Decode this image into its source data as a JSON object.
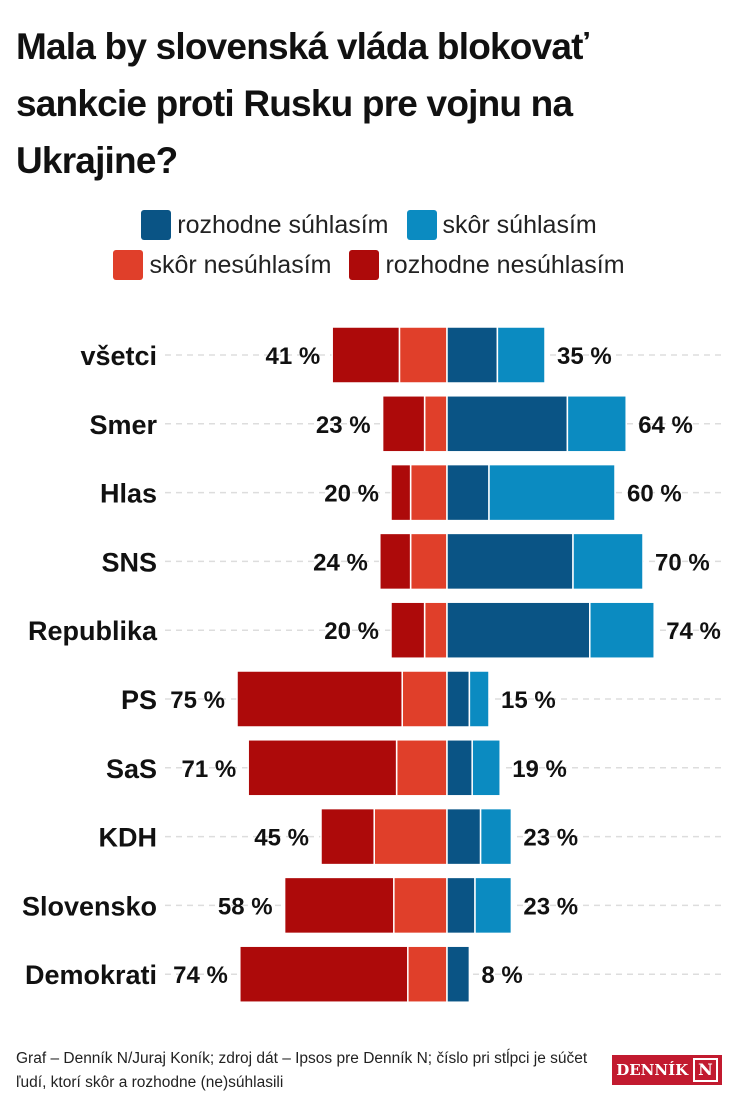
{
  "title": "Mala by slovenská vláda blokovať sankcie proti Rusku pre vojnu na Ukrajine?",
  "legend": [
    {
      "label": "rozhodne súhlasím",
      "color": "#0a5485"
    },
    {
      "label": "skôr súhlasím",
      "color": "#0b8bc1"
    },
    {
      "label": "skôr nesúhlasím",
      "color": "#e03f2a"
    },
    {
      "label": "rozhodne nesúhlasím",
      "color": "#ad0a0a"
    }
  ],
  "chart_data": {
    "type": "bar",
    "subtype": "diverging-stacked-horizontal",
    "title": "Mala by slovenská vláda blokovať sankcie proti Rusku pre vojnu na Ukrajine?",
    "categories": [
      "všetci",
      "Smer",
      "Hlas",
      "SNS",
      "Republika",
      "PS",
      "SaS",
      "KDH",
      "Slovensko",
      "Demokrati"
    ],
    "series": [
      {
        "name": "rozhodne nesúhlasím",
        "side": "left",
        "color": "#ad0a0a",
        "values": [
          24,
          15,
          7,
          11,
          12,
          59,
          53,
          19,
          39,
          60
        ]
      },
      {
        "name": "skôr nesúhlasím",
        "side": "left",
        "color": "#e03f2a",
        "values": [
          17,
          8,
          13,
          13,
          8,
          16,
          18,
          26,
          19,
          14
        ]
      },
      {
        "name": "rozhodne súhlasím",
        "side": "right",
        "color": "#0a5485",
        "values": [
          18,
          43,
          15,
          45,
          51,
          8,
          9,
          12,
          10,
          8
        ]
      },
      {
        "name": "skôr súhlasím",
        "side": "right",
        "color": "#0b8bc1",
        "values": [
          17,
          21,
          45,
          25,
          23,
          7,
          10,
          11,
          13,
          0
        ]
      }
    ],
    "left_totals": [
      "41 %",
      "23 %",
      "20 %",
      "24 %",
      "20 %",
      "75 %",
      "71 %",
      "45 %",
      "58 %",
      "74 %"
    ],
    "right_totals": [
      "35 %",
      "64 %",
      "60 %",
      "70 %",
      "74 %",
      "15 %",
      "19 %",
      "23 %",
      "23 %",
      "8 %"
    ],
    "xlim": [
      -80,
      100
    ],
    "grid": "dashed horizontal row guides",
    "legend_position": "top"
  },
  "footer": {
    "note": "Graf – Denník N/Juraj Koník; zdroj dát – Ipsos pre Denník N; číslo pri stĺpci je súčet ľudí, ktorí skôr a rozhodne (ne)súhlasili",
    "logo_text": "DENNÍK",
    "logo_mark": "N"
  }
}
